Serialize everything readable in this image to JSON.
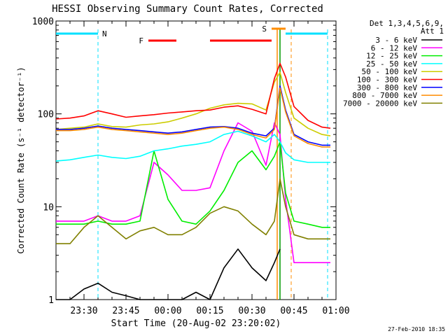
{
  "chart_data": {
    "type": "line",
    "title": "HESSI Observing Summary Count Rates, Corrected",
    "xlabel": "Start Time (20-Aug-02 23:20:02)",
    "ylabel": "Corrected Count Rate (s⁻¹ detector⁻¹)",
    "y_scale": "log",
    "ylim": [
      1,
      1000
    ],
    "xlim": [
      "23:20",
      "01:00"
    ],
    "x_ticks": [
      "23:30",
      "23:45",
      "00:00",
      "00:15",
      "00:30",
      "00:45",
      "01:00"
    ],
    "y_ticks": [
      "1",
      "10",
      "100",
      "1000"
    ],
    "legend_header": [
      "Det 1,3,4,5,6,9,",
      "Att 1"
    ],
    "legend_position": "right",
    "timestamp": "27-Feb-2010 18:35",
    "flags": [
      {
        "label": "N",
        "color": "#00e0ff",
        "start": "23:20",
        "end": "23:35"
      },
      {
        "label": "N",
        "color": "#00e0ff",
        "start": "00:42",
        "end": "00:57"
      },
      {
        "label": "F",
        "color": "#ff0000",
        "start": "23:53",
        "end": "00:03"
      },
      {
        "label": "F",
        "color": "#ff0000",
        "start": "00:15",
        "end": "00:37"
      },
      {
        "label": "S",
        "color": "#ff8c00",
        "start": "00:37",
        "end": "00:42"
      }
    ],
    "vlines": [
      {
        "x": "23:35",
        "color": "#00e0ff",
        "style": "dashed"
      },
      {
        "x": "00:57",
        "color": "#00e0ff",
        "style": "dashed"
      },
      {
        "x": "00:44",
        "color": "#ff8c00",
        "style": "dashed"
      },
      {
        "x": "00:39",
        "color": "#ff8c00",
        "style": "solid"
      },
      {
        "x": "00:40",
        "color": "#009a00",
        "style": "solid"
      }
    ],
    "x": [
      "23:20",
      "23:25",
      "23:30",
      "23:35",
      "23:40",
      "23:45",
      "23:50",
      "23:55",
      "00:00",
      "00:05",
      "00:10",
      "00:15",
      "00:20",
      "00:25",
      "00:30",
      "00:35",
      "00:38",
      "00:40",
      "00:42",
      "00:45",
      "00:50",
      "00:55",
      "00:58"
    ],
    "series": [
      {
        "name": "3 - 6 keV",
        "color": "#000000",
        "values": [
          1,
          1,
          1.3,
          1.5,
          1.2,
          1.1,
          1,
          1,
          1,
          1,
          1.2,
          1,
          2.2,
          3.5,
          2.2,
          1.6,
          2.5,
          3.5,
          null,
          null,
          null,
          null,
          null
        ]
      },
      {
        "name": "6 - 12 keV",
        "color": "#ff00ff",
        "values": [
          7,
          7,
          7,
          8,
          7,
          7,
          8,
          30,
          22,
          15,
          15,
          16,
          40,
          80,
          65,
          28,
          80,
          60,
          12,
          2.5,
          2.5,
          2.5,
          2.5
        ]
      },
      {
        "name": "12 - 25 keV",
        "color": "#00ee00",
        "values": [
          6.5,
          6.5,
          6.5,
          7,
          6.5,
          6.5,
          7,
          40,
          12,
          7,
          6.5,
          9,
          15,
          30,
          40,
          25,
          35,
          50,
          14,
          7,
          6.5,
          6,
          6
        ]
      },
      {
        "name": "25 - 50 keV",
        "color": "#00ffff",
        "values": [
          31,
          32,
          34,
          36,
          34,
          33,
          35,
          40,
          42,
          45,
          47,
          50,
          60,
          65,
          58,
          50,
          60,
          50,
          38,
          32,
          30,
          30,
          30
        ]
      },
      {
        "name": "50 - 100 keV",
        "color": "#cccc00",
        "values": [
          68,
          70,
          72,
          78,
          73,
          72,
          76,
          78,
          82,
          90,
          100,
          115,
          125,
          130,
          128,
          110,
          220,
          280,
          170,
          90,
          70,
          60,
          58
        ]
      },
      {
        "name": "100 - 300 keV",
        "color": "#ff0000",
        "values": [
          88,
          90,
          95,
          108,
          100,
          92,
          95,
          98,
          102,
          105,
          108,
          110,
          118,
          122,
          112,
          100,
          240,
          350,
          250,
          120,
          85,
          72,
          70
        ]
      },
      {
        "name": "300 - 800 keV",
        "color": "#0000ff",
        "values": [
          68,
          68,
          70,
          74,
          70,
          68,
          66,
          64,
          62,
          64,
          68,
          72,
          73,
          70,
          62,
          58,
          70,
          200,
          110,
          60,
          50,
          46,
          46
        ]
      },
      {
        "name": "800 - 7000 keV",
        "color": "#ff8c00",
        "values": [
          66,
          66,
          68,
          72,
          68,
          66,
          64,
          62,
          60,
          62,
          66,
          70,
          72,
          68,
          60,
          55,
          68,
          190,
          105,
          58,
          48,
          44,
          44
        ]
      },
      {
        "name": "7000 - 20000 keV",
        "color": "#808000",
        "values": [
          4,
          4,
          6,
          8,
          6,
          4.5,
          5.5,
          6,
          5,
          5,
          6,
          8.5,
          10,
          9,
          6.5,
          5,
          7,
          20,
          10,
          5,
          4.5,
          4.5,
          4.5
        ]
      }
    ]
  }
}
